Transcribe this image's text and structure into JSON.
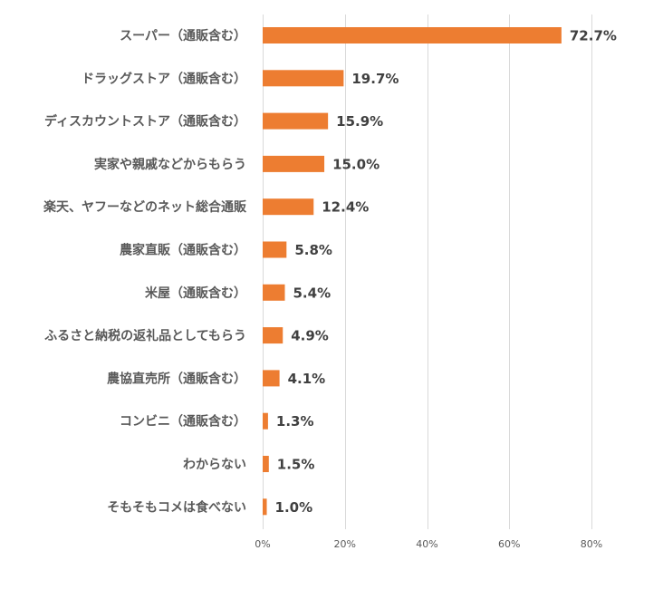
{
  "chart_data": {
    "type": "bar",
    "orientation": "horizontal",
    "title": "",
    "xlabel": "",
    "ylabel": "",
    "categories": [
      "スーパー（通販含む）",
      "ドラッグストア（通販含む）",
      "ディスカウントストア（通販含む）",
      "実家や親戚などからもらう",
      "楽天、ヤフーなどのネット総合通販",
      "農家直販（通販含む）",
      "米屋（通販含む）",
      "ふるさと納税の返礼品としてもらう",
      "農協直売所（通販含む）",
      "コンビニ（通販含む）",
      "わからない",
      "そもそもコメは食べない"
    ],
    "values": [
      72.7,
      19.7,
      15.9,
      15.0,
      12.4,
      5.8,
      5.4,
      4.9,
      4.1,
      1.3,
      1.5,
      1.0
    ],
    "data_labels": [
      "72.7%",
      "19.7%",
      "15.9%",
      "15.0%",
      "12.4%",
      "5.8%",
      "5.4%",
      "4.9%",
      "4.1%",
      "1.3%",
      "1.5%",
      "1.0%"
    ],
    "xlim": [
      0,
      80
    ],
    "x_ticks": [
      0,
      20,
      40,
      60,
      80
    ],
    "x_tick_labels": [
      "0%",
      "20%",
      "40%",
      "60%",
      "80%"
    ],
    "grid": true,
    "legend": "none",
    "bar_color": "#ED7D31",
    "gridline_color": "#D9D9D9"
  }
}
